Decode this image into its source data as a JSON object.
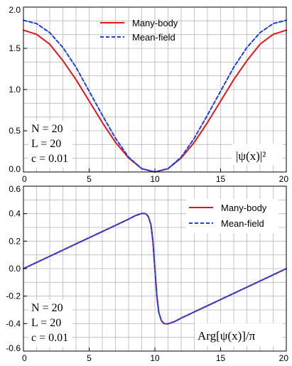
{
  "chart_data": [
    {
      "type": "line",
      "title": "",
      "xlabel": "",
      "ylabel": "",
      "xlim": [
        0,
        20
      ],
      "ylim": [
        0,
        2.0
      ],
      "xticks": [
        0,
        5,
        10,
        15,
        20
      ],
      "xtick_labels": [
        "0",
        "5",
        "10",
        "15",
        "20"
      ],
      "yticks": [
        0.0,
        0.5,
        1.0,
        1.5,
        2.0
      ],
      "ytick_labels": [
        "0.0",
        "0.5",
        "1.0",
        "1.5",
        "2.0"
      ],
      "grid": true,
      "legend": "top-center",
      "quantity_label": "|ψ(x)|²",
      "parameters": [
        "N = 20",
        "L = 20",
        "c = 0.01"
      ],
      "series": [
        {
          "name": "Many-body",
          "color": "#e8141b",
          "style": "solid",
          "x": [
            0,
            1,
            2,
            3,
            4,
            5,
            6,
            7,
            8,
            9,
            10,
            11,
            12,
            13,
            14,
            15,
            16,
            17,
            18,
            19,
            20
          ],
          "y": [
            1.72,
            1.67,
            1.55,
            1.35,
            1.12,
            0.86,
            0.6,
            0.36,
            0.17,
            0.04,
            0.0,
            0.04,
            0.17,
            0.36,
            0.6,
            0.86,
            1.12,
            1.35,
            1.55,
            1.67,
            1.72
          ]
        },
        {
          "name": "Mean-field",
          "color": "#1f3fe0",
          "style": "dashed",
          "x": [
            0,
            1,
            2,
            3,
            4,
            5,
            6,
            7,
            8,
            9,
            10,
            11,
            12,
            13,
            14,
            15,
            16,
            17,
            18,
            19,
            20
          ],
          "y": [
            1.84,
            1.8,
            1.69,
            1.51,
            1.27,
            0.98,
            0.69,
            0.41,
            0.18,
            0.04,
            0.0,
            0.04,
            0.18,
            0.41,
            0.69,
            0.98,
            1.27,
            1.51,
            1.69,
            1.8,
            1.84
          ]
        }
      ]
    },
    {
      "type": "line",
      "title": "",
      "xlabel": "",
      "ylabel": "",
      "xlim": [
        0,
        20
      ],
      "ylim": [
        -0.6,
        0.6
      ],
      "xticks": [
        0,
        5,
        10,
        15,
        20
      ],
      "xtick_labels": [
        "0",
        "5",
        "10",
        "15",
        "20"
      ],
      "yticks": [
        -0.6,
        -0.4,
        -0.2,
        0.0,
        0.2,
        0.4,
        0.6
      ],
      "ytick_labels": [
        "-0.6",
        "-0.4",
        "-0.2",
        "0.0",
        "0.2",
        "0.4",
        "0.6"
      ],
      "grid": true,
      "legend": "top-right",
      "quantity_label": "Arg[ψ(x)]/π",
      "parameters": [
        "N = 20",
        "L = 20",
        "c = 0.01"
      ],
      "series": [
        {
          "name": "Many-body",
          "color": "#e8141b",
          "style": "solid",
          "x": [
            0,
            1,
            2,
            3,
            4,
            5,
            6,
            7,
            8,
            8.5,
            9,
            9.3,
            9.5,
            9.7,
            9.85,
            10,
            10.15,
            10.3,
            10.5,
            10.7,
            11,
            11.5,
            12,
            13,
            14,
            15,
            16,
            17,
            18,
            19,
            20
          ],
          "y": [
            0.0,
            0.045,
            0.09,
            0.135,
            0.18,
            0.225,
            0.27,
            0.315,
            0.36,
            0.385,
            0.402,
            0.4,
            0.38,
            0.32,
            0.2,
            0.0,
            -0.2,
            -0.32,
            -0.38,
            -0.4,
            -0.402,
            -0.385,
            -0.36,
            -0.315,
            -0.27,
            -0.225,
            -0.18,
            -0.135,
            -0.09,
            -0.045,
            0.0
          ]
        },
        {
          "name": "Mean-field",
          "color": "#1f3fe0",
          "style": "dashed",
          "x": [
            0,
            1,
            2,
            3,
            4,
            5,
            6,
            7,
            8,
            8.5,
            9,
            9.3,
            9.5,
            9.7,
            9.85,
            10,
            10.15,
            10.3,
            10.5,
            10.7,
            11,
            11.5,
            12,
            13,
            14,
            15,
            16,
            17,
            18,
            19,
            20
          ],
          "y": [
            0.0,
            0.045,
            0.09,
            0.135,
            0.18,
            0.225,
            0.27,
            0.315,
            0.36,
            0.385,
            0.402,
            0.4,
            0.38,
            0.32,
            0.2,
            0.0,
            -0.2,
            -0.32,
            -0.38,
            -0.4,
            -0.402,
            -0.385,
            -0.36,
            -0.315,
            -0.27,
            -0.225,
            -0.18,
            -0.135,
            -0.09,
            -0.045,
            0.0
          ]
        }
      ]
    }
  ]
}
